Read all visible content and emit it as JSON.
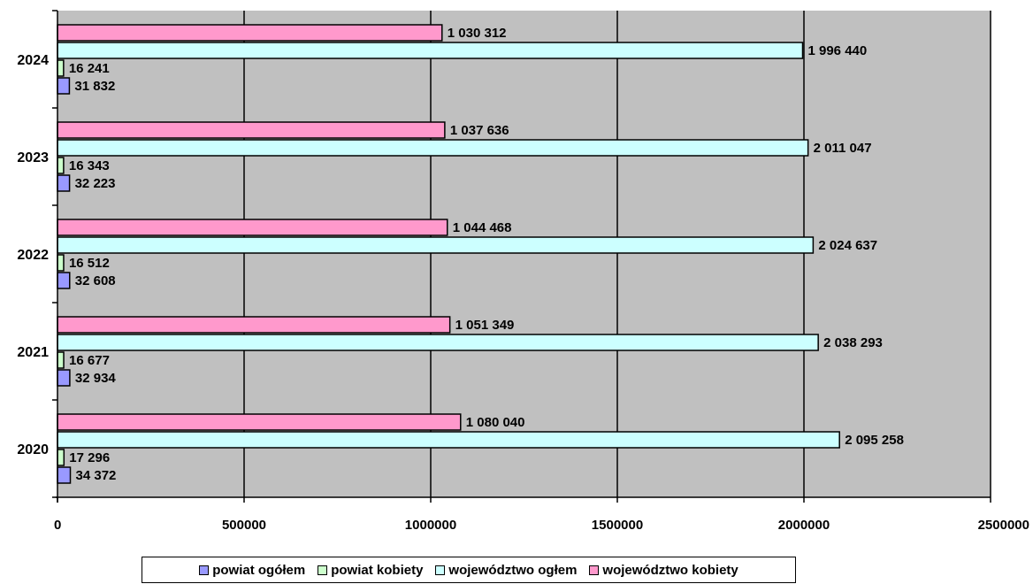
{
  "chart_data": {
    "type": "bar",
    "orientation": "horizontal",
    "categories": [
      "2020",
      "2021",
      "2022",
      "2023",
      "2024"
    ],
    "series": [
      {
        "name": "powiat ogółem",
        "color": "#9999ff",
        "values": [
          34372,
          32934,
          32608,
          32223,
          31832
        ],
        "labels": [
          "34 372",
          "32 934",
          "32 608",
          "32 223",
          "31 832"
        ]
      },
      {
        "name": "powiat kobiety",
        "color": "#ccffcc",
        "values": [
          17296,
          16677,
          16512,
          16343,
          16241
        ],
        "labels": [
          "17 296",
          "16 677",
          "16 512",
          "16 343",
          "16 241"
        ]
      },
      {
        "name": "województwo ogłem",
        "color": "#ccffff",
        "values": [
          2095258,
          2038293,
          2024637,
          2011047,
          1996440
        ],
        "labels": [
          "2 095 258",
          "2 038 293",
          "2 024 637",
          "2 011 047",
          "1 996 440"
        ]
      },
      {
        "name": "województwo kobiety",
        "color": "#ff99cc",
        "values": [
          1080040,
          1051349,
          1044468,
          1037636,
          1030312
        ],
        "labels": [
          "1 080 040",
          "1 051 349",
          "1 044 468",
          "1 037 636",
          "1 030 312"
        ]
      }
    ],
    "xlim": [
      0,
      2500000
    ],
    "xticks": [
      "0",
      "500000",
      "1000000",
      "1500000",
      "2000000",
      "2500000"
    ],
    "xtick_values": [
      0,
      500000,
      1000000,
      1500000,
      2000000,
      2500000
    ],
    "grid": true,
    "plot_background": "#c0c0c0",
    "legend_position": "bottom"
  }
}
